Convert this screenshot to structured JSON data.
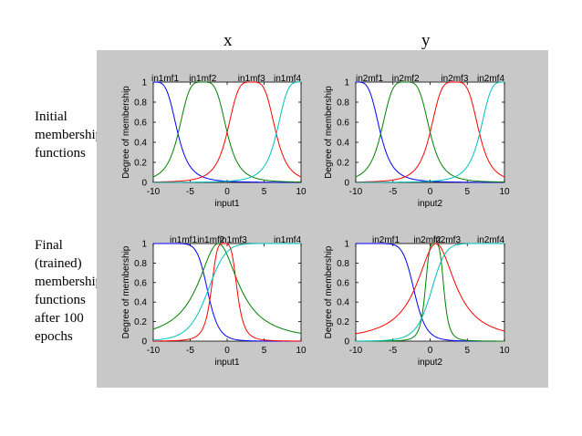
{
  "columns": [
    "x",
    "y"
  ],
  "row_labels": [
    [
      "Initial",
      "membership",
      "functions"
    ],
    [
      "Final",
      "(trained)",
      "membership",
      "functions",
      "after 100",
      "epochs"
    ]
  ],
  "chart_data": [
    {
      "type": "line",
      "title": "",
      "xlabel": "input1",
      "ylabel": "Degree of membership",
      "xlim": [
        -10,
        10
      ],
      "ylim": [
        0,
        1
      ],
      "xticks": [
        -10,
        -5,
        0,
        5,
        10
      ],
      "yticks": [
        0,
        0.2,
        0.4,
        0.6,
        0.8,
        1
      ],
      "series": [
        {
          "name": "in1mf1",
          "color": "#0000ff",
          "shape": "gbell",
          "a": 3.3,
          "b": 2,
          "c": -10
        },
        {
          "name": "in1mf2",
          "color": "#008000",
          "shape": "gbell",
          "a": 3.3,
          "b": 2,
          "c": -3.3
        },
        {
          "name": "in1mf3",
          "color": "#ff0000",
          "shape": "gbell",
          "a": 3.3,
          "b": 2,
          "c": 3.3
        },
        {
          "name": "in1mf4",
          "color": "#00bfbf",
          "shape": "gbell",
          "a": 3.3,
          "b": 2,
          "c": 10
        }
      ]
    },
    {
      "type": "line",
      "title": "",
      "xlabel": "input2",
      "ylabel": "Degree of membership",
      "xlim": [
        -10,
        10
      ],
      "ylim": [
        0,
        1
      ],
      "xticks": [
        -10,
        -5,
        0,
        5,
        10
      ],
      "yticks": [
        0,
        0.2,
        0.4,
        0.6,
        0.8,
        1
      ],
      "series": [
        {
          "name": "in2mf1",
          "color": "#0000ff",
          "shape": "gbell",
          "a": 3.3,
          "b": 2,
          "c": -10
        },
        {
          "name": "in2mf2",
          "color": "#008000",
          "shape": "gbell",
          "a": 3.3,
          "b": 2,
          "c": -3.3
        },
        {
          "name": "in2mf3",
          "color": "#ff0000",
          "shape": "gbell",
          "a": 3.3,
          "b": 2,
          "c": 3.3
        },
        {
          "name": "in2mf4",
          "color": "#00bfbf",
          "shape": "gbell",
          "a": 3.3,
          "b": 2,
          "c": 10
        }
      ]
    },
    {
      "type": "line",
      "title": "",
      "xlabel": "input1",
      "ylabel": "Degree of membership",
      "xlim": [
        -10,
        10
      ],
      "ylim": [
        0,
        1
      ],
      "xticks": [
        -10,
        -5,
        0,
        5,
        10
      ],
      "yticks": [
        0,
        0.2,
        0.4,
        0.6,
        0.8,
        1
      ],
      "series": [
        {
          "name": "in1mf1",
          "color": "#0000ff",
          "shape": "gbell",
          "a": 7.4,
          "b": 5,
          "c": -10
        },
        {
          "name": "in1mf2",
          "color": "#008000",
          "shape": "gbell",
          "a": 3.3,
          "b": 1,
          "c": -1.2
        },
        {
          "name": "in1mf3",
          "color": "#ff0000",
          "shape": "gbell",
          "a": 1.8,
          "b": 2,
          "c": -0.4
        },
        {
          "name": "in1mf4",
          "color": "#00bfbf",
          "shape": "gbell",
          "a": 12.7,
          "b": 5,
          "c": 10
        }
      ]
    },
    {
      "type": "line",
      "title": "",
      "xlabel": "input2",
      "ylabel": "Degree of membership",
      "xlim": [
        -10,
        10
      ],
      "ylim": [
        0,
        1
      ],
      "xticks": [
        -10,
        -5,
        0,
        5,
        10
      ],
      "yticks": [
        0,
        0.2,
        0.4,
        0.6,
        0.8,
        1
      ],
      "series": [
        {
          "name": "in2mf1",
          "color": "#0000ff",
          "shape": "gbell",
          "a": 7.9,
          "b": 5,
          "c": -10
        },
        {
          "name": "in2mf2",
          "color": "#008000",
          "shape": "gbell",
          "a": 1.3,
          "b": 2,
          "c": 0.6
        },
        {
          "name": "in2mf3",
          "color": "#ff0000",
          "shape": "gbell",
          "a": 3.1,
          "b": 1,
          "c": 0.8
        },
        {
          "name": "in2mf4",
          "color": "#00bfbf",
          "shape": "gbell",
          "a": 9.9,
          "b": 5,
          "c": 10
        }
      ]
    }
  ]
}
